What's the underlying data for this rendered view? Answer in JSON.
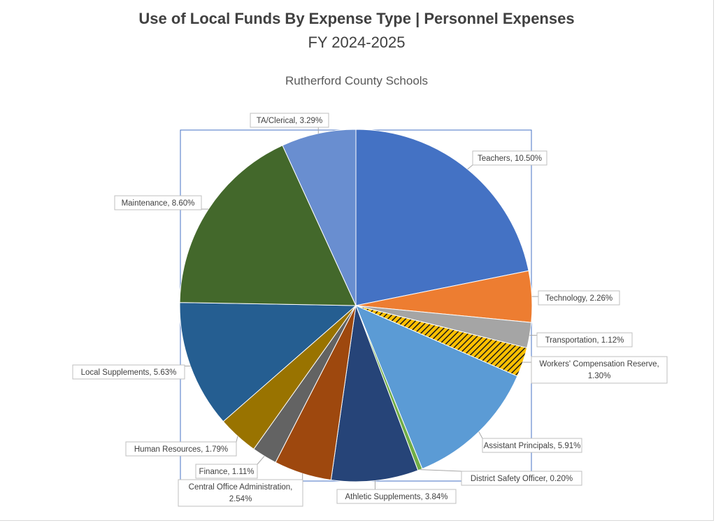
{
  "chart_data": {
    "type": "pie",
    "title": "Use of Local Funds By Expense Type | Personnel Expenses",
    "subtitle": "FY 2024-2025",
    "organization": "Rutherford County Schools",
    "slices": [
      {
        "label": "Teachers",
        "value_text": "10.50%",
        "value": 10.5,
        "color": "#4472C4"
      },
      {
        "label": "Technology",
        "value_text": "2.26%",
        "value": 2.26,
        "color": "#ED7D31"
      },
      {
        "label": "Transportation",
        "value_text": "1.12%",
        "value": 1.12,
        "color": "#A5A5A5"
      },
      {
        "label": "Workers' Compensation Reserve",
        "value_text": "1.30%",
        "value": 1.3,
        "color": "#FFC000",
        "pattern": "hatched"
      },
      {
        "label": "Assistant Principals",
        "value_text": "5.91%",
        "value": 5.91,
        "color": "#5B9BD5"
      },
      {
        "label": "District Safety Officer",
        "value_text": "0.20%",
        "value": 0.2,
        "color": "#70AD47"
      },
      {
        "label": "Athletic Supplements",
        "value_text": "3.84%",
        "value": 3.84,
        "color": "#264478"
      },
      {
        "label": "Central Office Administration",
        "value_text": "2.54%",
        "value": 2.54,
        "color": "#9E480E"
      },
      {
        "label": "Finance",
        "value_text": "1.11%",
        "value": 1.11,
        "color": "#636363"
      },
      {
        "label": "Human Resources",
        "value_text": "1.79%",
        "value": 1.79,
        "color": "#997300"
      },
      {
        "label": "Local Supplements",
        "value_text": "5.63%",
        "value": 5.63,
        "color": "#255E91"
      },
      {
        "label": "Maintenance",
        "value_text": "8.60%",
        "value": 8.6,
        "color": "#43682B"
      },
      {
        "label": "TA/Clerical",
        "value_text": "3.29%",
        "value": 3.29,
        "color": "#698ED0"
      }
    ]
  }
}
